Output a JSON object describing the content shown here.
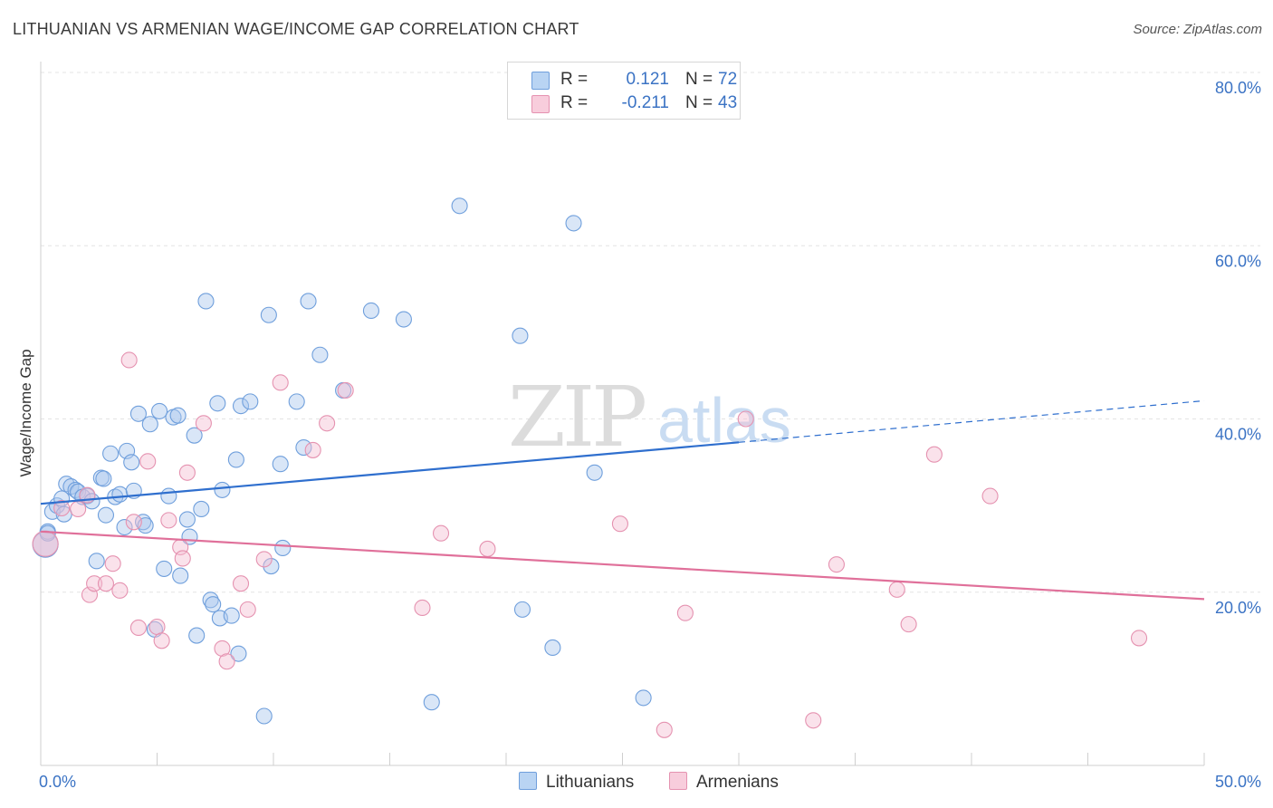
{
  "title": "LITHUANIAN VS ARMENIAN WAGE/INCOME GAP CORRELATION CHART",
  "source": "Source: ZipAtlas.com",
  "watermark": {
    "zip": "ZIP",
    "atlas": "atlas"
  },
  "legend": {
    "rows": [
      {
        "r_label": "R =",
        "r_value": "0.121",
        "n_label": "N =",
        "n_value": "72"
      },
      {
        "r_label": "R =",
        "r_value": "-0.211",
        "n_label": "N =",
        "n_value": "43"
      }
    ]
  },
  "bottom_legend": {
    "series1": "Lithuanians",
    "series2": "Armenians"
  },
  "colors": {
    "blue_fill": "#aac8ee",
    "blue_stroke": "#6f9fdc",
    "blue_line": "#2f6fce",
    "pink_fill": "#f5bfd2",
    "pink_stroke": "#e592b0",
    "pink_line": "#e0709a",
    "axis_text": "#3b73c4",
    "grid": "#e4e4e4"
  },
  "chart_data": {
    "type": "scatter",
    "ylabel": "Wage/Income Gap",
    "xlim": [
      0,
      50
    ],
    "ylim": [
      0,
      80
    ],
    "x_tick_labels": [
      {
        "value": 0,
        "label": "0.0%"
      },
      {
        "value": 50,
        "label": "50.0%"
      }
    ],
    "y_tick_labels": [
      {
        "value": 20,
        "label": "20.0%"
      },
      {
        "value": 40,
        "label": "40.0%"
      },
      {
        "value": 60,
        "label": "60.0%"
      },
      {
        "value": 80,
        "label": "80.0%"
      }
    ],
    "series": [
      {
        "name": "Lithuanians",
        "r": 0.121,
        "n": 72,
        "trend": {
          "x0": 0,
          "y0": 30.2,
          "x1": 30,
          "y1": 37.3,
          "dashed_to_x": 50,
          "dashed_to_y": 42.1
        },
        "points": [
          [
            0.2,
            25.5
          ],
          [
            0.3,
            27.0
          ],
          [
            0.5,
            29.3
          ],
          [
            0.7,
            30.0
          ],
          [
            0.9,
            30.8
          ],
          [
            1.0,
            29.0
          ],
          [
            1.1,
            32.5
          ],
          [
            1.3,
            32.2
          ],
          [
            1.5,
            31.8
          ],
          [
            1.6,
            31.6
          ],
          [
            1.8,
            31.0
          ],
          [
            2.0,
            31.1
          ],
          [
            2.2,
            30.5
          ],
          [
            2.4,
            23.6
          ],
          [
            2.6,
            33.2
          ],
          [
            2.7,
            33.1
          ],
          [
            2.8,
            28.9
          ],
          [
            3.0,
            36.0
          ],
          [
            3.2,
            31.0
          ],
          [
            3.4,
            31.3
          ],
          [
            3.6,
            27.5
          ],
          [
            3.7,
            36.3
          ],
          [
            3.9,
            35.0
          ],
          [
            4.0,
            31.7
          ],
          [
            4.2,
            40.6
          ],
          [
            4.4,
            28.1
          ],
          [
            4.5,
            27.7
          ],
          [
            4.7,
            39.4
          ],
          [
            4.9,
            15.7
          ],
          [
            5.1,
            40.9
          ],
          [
            5.3,
            22.7
          ],
          [
            5.5,
            31.1
          ],
          [
            5.7,
            40.2
          ],
          [
            5.9,
            40.4
          ],
          [
            6.0,
            21.9
          ],
          [
            6.3,
            28.4
          ],
          [
            6.4,
            26.4
          ],
          [
            6.6,
            38.1
          ],
          [
            6.7,
            15.0
          ],
          [
            6.9,
            29.6
          ],
          [
            7.1,
            53.6
          ],
          [
            7.3,
            19.1
          ],
          [
            7.4,
            18.6
          ],
          [
            7.6,
            41.8
          ],
          [
            7.7,
            17.0
          ],
          [
            7.8,
            31.8
          ],
          [
            8.2,
            17.3
          ],
          [
            8.4,
            35.3
          ],
          [
            8.5,
            12.9
          ],
          [
            8.6,
            41.5
          ],
          [
            9.0,
            42.0
          ],
          [
            9.6,
            5.7
          ],
          [
            9.8,
            52.0
          ],
          [
            9.9,
            23.0
          ],
          [
            10.3,
            34.8
          ],
          [
            10.4,
            25.1
          ],
          [
            11.0,
            42.0
          ],
          [
            11.3,
            36.7
          ],
          [
            11.5,
            53.6
          ],
          [
            12.0,
            47.4
          ],
          [
            13.0,
            43.3
          ],
          [
            14.2,
            52.5
          ],
          [
            15.6,
            51.5
          ],
          [
            16.8,
            7.3
          ],
          [
            18.0,
            64.6
          ],
          [
            20.6,
            49.6
          ],
          [
            20.7,
            18.0
          ],
          [
            22.0,
            13.6
          ],
          [
            22.9,
            62.6
          ],
          [
            23.8,
            33.8
          ],
          [
            25.9,
            7.8
          ],
          [
            0.3,
            26.8
          ]
        ]
      },
      {
        "name": "Armenians",
        "r": -0.211,
        "n": 43,
        "trend": {
          "x0": 0,
          "y0": 27.0,
          "x1": 50,
          "y1": 19.2
        },
        "points": [
          [
            0.2,
            25.6
          ],
          [
            0.9,
            29.7
          ],
          [
            1.6,
            29.6
          ],
          [
            2.0,
            31.2
          ],
          [
            2.1,
            19.7
          ],
          [
            2.3,
            21.0
          ],
          [
            2.8,
            21.0
          ],
          [
            3.1,
            23.3
          ],
          [
            3.4,
            20.2
          ],
          [
            3.8,
            46.8
          ],
          [
            4.0,
            28.1
          ],
          [
            4.2,
            15.9
          ],
          [
            4.6,
            35.1
          ],
          [
            5.0,
            16.0
          ],
          [
            5.2,
            14.4
          ],
          [
            5.5,
            28.3
          ],
          [
            6.0,
            25.2
          ],
          [
            6.1,
            23.9
          ],
          [
            6.3,
            33.8
          ],
          [
            7.0,
            39.5
          ],
          [
            7.8,
            13.5
          ],
          [
            8.0,
            12.0
          ],
          [
            8.6,
            21.0
          ],
          [
            8.9,
            18.0
          ],
          [
            9.6,
            23.8
          ],
          [
            10.3,
            44.2
          ],
          [
            11.7,
            36.4
          ],
          [
            12.3,
            39.5
          ],
          [
            13.1,
            43.3
          ],
          [
            16.4,
            18.2
          ],
          [
            17.2,
            26.8
          ],
          [
            19.2,
            25.0
          ],
          [
            24.9,
            27.9
          ],
          [
            26.8,
            4.1
          ],
          [
            27.7,
            17.6
          ],
          [
            33.2,
            5.2
          ],
          [
            34.2,
            23.2
          ],
          [
            36.8,
            20.3
          ],
          [
            37.3,
            16.3
          ],
          [
            38.4,
            35.9
          ],
          [
            40.8,
            31.1
          ],
          [
            47.2,
            14.7
          ],
          [
            30.3,
            40.0
          ]
        ]
      }
    ]
  }
}
